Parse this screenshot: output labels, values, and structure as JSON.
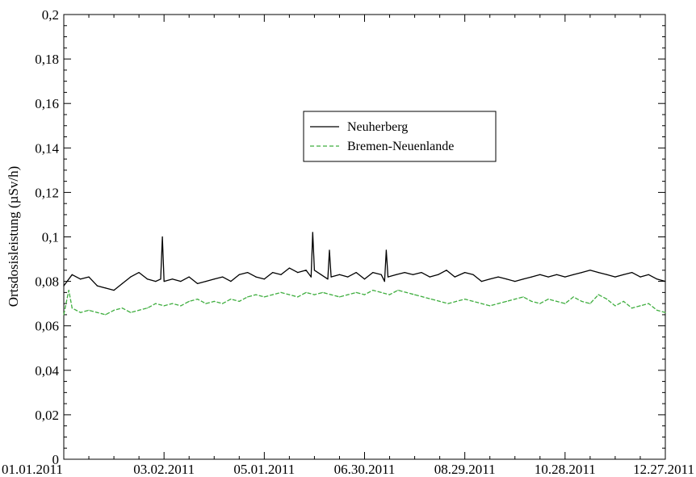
{
  "chart_data": {
    "type": "line",
    "title": "",
    "xlabel": "",
    "ylabel": "Ortsdosisleistung (µSv/h)",
    "xlim": [
      "2011-01-01",
      "2011-12-27"
    ],
    "ylim": [
      0,
      0.2
    ],
    "x_tick_labels": [
      "01.01.2011",
      "03.02.2011",
      "05.01.2011",
      "06.30.2011",
      "08.29.2011",
      "10.28.2011",
      "12.27.2011"
    ],
    "y_tick_labels": [
      "0",
      "0,02",
      "0,04",
      "0,06",
      "0,08",
      "0,1",
      "0,12",
      "0,14",
      "0,16",
      "0,18",
      "0,2"
    ],
    "y_ticks": [
      0,
      0.02,
      0.04,
      0.06,
      0.08,
      0.1,
      0.12,
      0.14,
      0.16,
      0.18,
      0.2
    ],
    "grid": false,
    "legend_position": "center",
    "series": [
      {
        "name": "Neuherberg",
        "color": "#000000",
        "style": "solid",
        "x": [
          "2011-01-01",
          "2011-01-06",
          "2011-01-11",
          "2011-01-16",
          "2011-01-21",
          "2011-01-26",
          "2011-01-31",
          "2011-02-05",
          "2011-02-10",
          "2011-02-15",
          "2011-02-20",
          "2011-02-25",
          "2011-02-28",
          "2011-03-01",
          "2011-03-02",
          "2011-03-07",
          "2011-03-12",
          "2011-03-17",
          "2011-03-22",
          "2011-03-27",
          "2011-04-01",
          "2011-04-06",
          "2011-04-11",
          "2011-04-16",
          "2011-04-21",
          "2011-04-26",
          "2011-05-01",
          "2011-05-06",
          "2011-05-11",
          "2011-05-16",
          "2011-05-21",
          "2011-05-26",
          "2011-05-29",
          "2011-05-30",
          "2011-05-31",
          "2011-06-04",
          "2011-06-08",
          "2011-06-09",
          "2011-06-10",
          "2011-06-15",
          "2011-06-20",
          "2011-06-25",
          "2011-06-30",
          "2011-07-05",
          "2011-07-10",
          "2011-07-12",
          "2011-07-13",
          "2011-07-14",
          "2011-07-19",
          "2011-07-24",
          "2011-07-29",
          "2011-08-03",
          "2011-08-08",
          "2011-08-13",
          "2011-08-18",
          "2011-08-23",
          "2011-08-29",
          "2011-09-03",
          "2011-09-08",
          "2011-09-13",
          "2011-09-18",
          "2011-09-23",
          "2011-09-28",
          "2011-10-03",
          "2011-10-08",
          "2011-10-13",
          "2011-10-18",
          "2011-10-23",
          "2011-10-28",
          "2011-11-02",
          "2011-11-07",
          "2011-11-12",
          "2011-11-17",
          "2011-11-22",
          "2011-11-27",
          "2011-12-02",
          "2011-12-07",
          "2011-12-12",
          "2011-12-17",
          "2011-12-22",
          "2011-12-27"
        ],
        "y": [
          0.078,
          0.083,
          0.081,
          0.082,
          0.078,
          0.077,
          0.076,
          0.079,
          0.082,
          0.084,
          0.081,
          0.08,
          0.081,
          0.1,
          0.08,
          0.081,
          0.08,
          0.082,
          0.079,
          0.08,
          0.081,
          0.082,
          0.08,
          0.083,
          0.084,
          0.082,
          0.081,
          0.084,
          0.083,
          0.086,
          0.084,
          0.085,
          0.082,
          0.102,
          0.085,
          0.083,
          0.081,
          0.094,
          0.082,
          0.083,
          0.082,
          0.084,
          0.081,
          0.084,
          0.083,
          0.08,
          0.094,
          0.082,
          0.083,
          0.084,
          0.083,
          0.084,
          0.082,
          0.083,
          0.085,
          0.082,
          0.084,
          0.083,
          0.08,
          0.081,
          0.082,
          0.081,
          0.08,
          0.081,
          0.082,
          0.083,
          0.082,
          0.083,
          0.082,
          0.083,
          0.084,
          0.085,
          0.084,
          0.083,
          0.082,
          0.083,
          0.084,
          0.082,
          0.083,
          0.081,
          0.08
        ]
      },
      {
        "name": "Bremen-Neuenlande",
        "color": "#3fae3f",
        "style": "dashed",
        "x": [
          "2011-01-01",
          "2011-01-04",
          "2011-01-06",
          "2011-01-11",
          "2011-01-16",
          "2011-01-21",
          "2011-01-26",
          "2011-01-31",
          "2011-02-05",
          "2011-02-10",
          "2011-02-15",
          "2011-02-20",
          "2011-02-25",
          "2011-03-02",
          "2011-03-07",
          "2011-03-12",
          "2011-03-17",
          "2011-03-22",
          "2011-03-27",
          "2011-04-01",
          "2011-04-06",
          "2011-04-11",
          "2011-04-16",
          "2011-04-21",
          "2011-04-26",
          "2011-05-01",
          "2011-05-06",
          "2011-05-11",
          "2011-05-16",
          "2011-05-21",
          "2011-05-26",
          "2011-05-31",
          "2011-06-05",
          "2011-06-10",
          "2011-06-15",
          "2011-06-20",
          "2011-06-25",
          "2011-06-30",
          "2011-07-05",
          "2011-07-10",
          "2011-07-15",
          "2011-07-20",
          "2011-07-25",
          "2011-07-30",
          "2011-08-04",
          "2011-08-09",
          "2011-08-14",
          "2011-08-19",
          "2011-08-24",
          "2011-08-29",
          "2011-09-03",
          "2011-09-08",
          "2011-09-13",
          "2011-09-18",
          "2011-09-23",
          "2011-09-28",
          "2011-10-03",
          "2011-10-08",
          "2011-10-13",
          "2011-10-18",
          "2011-10-23",
          "2011-10-28",
          "2011-11-02",
          "2011-11-07",
          "2011-11-12",
          "2011-11-17",
          "2011-11-22",
          "2011-11-27",
          "2011-12-02",
          "2011-12-07",
          "2011-12-12",
          "2011-12-17",
          "2011-12-22",
          "2011-12-27"
        ],
        "y": [
          0.065,
          0.076,
          0.068,
          0.066,
          0.067,
          0.066,
          0.065,
          0.067,
          0.068,
          0.066,
          0.067,
          0.068,
          0.07,
          0.069,
          0.07,
          0.069,
          0.071,
          0.072,
          0.07,
          0.071,
          0.07,
          0.072,
          0.071,
          0.073,
          0.074,
          0.073,
          0.074,
          0.075,
          0.074,
          0.073,
          0.075,
          0.074,
          0.075,
          0.074,
          0.073,
          0.074,
          0.075,
          0.074,
          0.076,
          0.075,
          0.074,
          0.076,
          0.075,
          0.074,
          0.073,
          0.072,
          0.071,
          0.07,
          0.071,
          0.072,
          0.071,
          0.07,
          0.069,
          0.07,
          0.071,
          0.072,
          0.073,
          0.071,
          0.07,
          0.072,
          0.071,
          0.07,
          0.073,
          0.071,
          0.07,
          0.074,
          0.072,
          0.069,
          0.071,
          0.068,
          0.069,
          0.07,
          0.067,
          0.066
        ]
      }
    ]
  }
}
